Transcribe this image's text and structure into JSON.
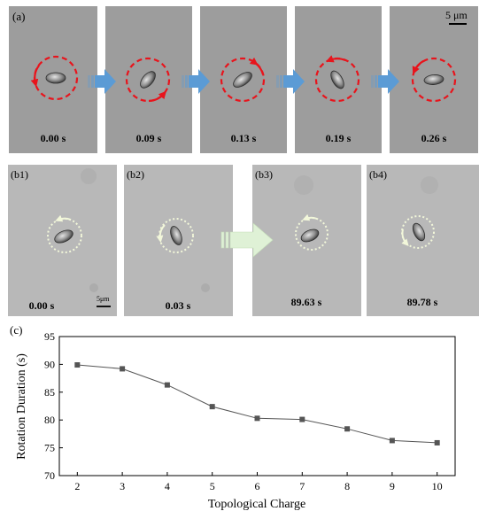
{
  "panel_a": {
    "label": "(a)",
    "scale_bar": "5 μm",
    "frames": [
      {
        "time": "0.00 s",
        "rotation": "counterclockwise"
      },
      {
        "time": "0.09 s",
        "rotation": "clockwise"
      },
      {
        "time": "0.13 s",
        "rotation": "clockwise"
      },
      {
        "time": "0.19 s",
        "rotation": "counterclockwise"
      },
      {
        "time": "0.26 s",
        "rotation": "counterclockwise"
      }
    ],
    "arrow_color": "#5b9bd5",
    "path_color": "#e8141c"
  },
  "panel_b": {
    "frames": [
      {
        "label": "(b1)",
        "time": "0.00 s"
      },
      {
        "label": "(b2)",
        "time": "0.03 s"
      },
      {
        "label": "(b3)",
        "time": "89.63 s"
      },
      {
        "label": "(b4)",
        "time": "89.78 s"
      }
    ],
    "scale_bar": "5μm",
    "arrow_color": "#dff1d6"
  },
  "panel_c": {
    "label": "(c)",
    "chart_data": {
      "type": "line",
      "xlabel": "Topological Charge",
      "ylabel": "Rotation Duration (s)",
      "x": [
        2,
        3,
        4,
        5,
        6,
        7,
        8,
        9,
        10
      ],
      "series": [
        {
          "values": [
            89.9,
            89.2,
            86.3,
            82.4,
            80.3,
            80.1,
            78.4,
            76.3,
            75.9
          ]
        }
      ],
      "xlim": [
        1.6,
        10.4
      ],
      "ylim": [
        70,
        95
      ],
      "xticks": [
        "2",
        "3",
        "4",
        "5",
        "6",
        "7",
        "8",
        "9",
        "10"
      ],
      "yticks": [
        "70",
        "75",
        "80",
        "85",
        "90",
        "95"
      ],
      "grid": false,
      "legend": "none",
      "marker": "square",
      "color": "#555555"
    }
  }
}
